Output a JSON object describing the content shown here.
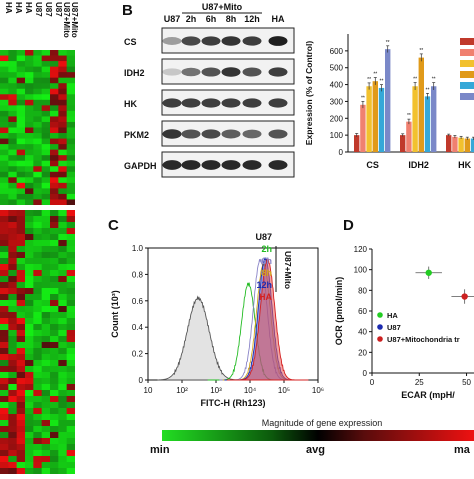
{
  "panel_letters": {
    "b": "B",
    "c": "C",
    "d": "D"
  },
  "heatmap": {
    "col_labels": [
      "HA",
      "U87",
      "U87+Mito",
      "U87+Mito"
    ],
    "colors": {
      "low": "#22dd22",
      "mid": "#000000",
      "high": "#ee1111"
    }
  },
  "western_blot": {
    "u87_label": "U87",
    "group_label": "U87+Mito",
    "time_labels": [
      "2h",
      "6h",
      "8h",
      "12h"
    ],
    "ha_label": "HA",
    "proteins": [
      "CS",
      "IDH2",
      "HK",
      "PKM2",
      "GAPDH"
    ]
  },
  "chart_data": [
    {
      "type": "bar",
      "panel": "B",
      "ylabel": "Expression (% of Control)",
      "ylim": [
        0,
        700
      ],
      "yticks": [
        "0",
        "100",
        "200",
        "300",
        "400",
        "500",
        "600"
      ],
      "categories": [
        "CS",
        "IDH2",
        "HK"
      ],
      "category_labels": [
        "CS",
        "IDH2",
        "HK"
      ],
      "series": [
        {
          "color": "#c0392b",
          "values": [
            100,
            100,
            100
          ]
        },
        {
          "color": "#f08070",
          "values": [
            280,
            180,
            90
          ]
        },
        {
          "color": "#f2c12e",
          "values": [
            390,
            390,
            85
          ]
        },
        {
          "color": "#e09a1a",
          "values": [
            420,
            560,
            80
          ]
        },
        {
          "color": "#35a8d8",
          "values": [
            380,
            330,
            80
          ]
        },
        {
          "color": "#7a88c8",
          "values": [
            610,
            390,
            80
          ]
        }
      ],
      "errors": [
        [
          10,
          8,
          6
        ],
        [
          20,
          15,
          8
        ],
        [
          20,
          22,
          8
        ],
        [
          22,
          22,
          8
        ],
        [
          20,
          18,
          8
        ],
        [
          20,
          22,
          8
        ]
      ],
      "significance": "**"
    },
    {
      "type": "line",
      "panel": "C",
      "xlabel": "FITC-H (Rh123)",
      "ylabel": "Count (10³)",
      "xscale": "log",
      "xlim": [
        10,
        1000000
      ],
      "ylim": [
        0,
        1.0
      ],
      "xticks": [
        "10",
        "10²",
        "10³",
        "10⁴",
        "10⁵",
        "10⁶"
      ],
      "yticks": [
        "0",
        "0.2",
        "0.4",
        "0.6",
        "0.8",
        "1.0"
      ],
      "legend_items": [
        {
          "label": "U87",
          "color": "#111111"
        },
        {
          "label": "2h",
          "color": "#22bb22"
        },
        {
          "label": "6h",
          "color": "#8a84c8"
        },
        {
          "label": "8h",
          "color": "#d4a51a"
        },
        {
          "label": "12h",
          "color": "#1c2bb0"
        },
        {
          "label": "HA",
          "color": "#d42020"
        }
      ],
      "legend_group_label": "U87+Mito",
      "series": [
        {
          "color": "#555555",
          "fill": "#cccccc",
          "peak_x": 300,
          "peak_y": 0.62,
          "width": 0.32
        },
        {
          "color": "#22bb22",
          "fill": "none",
          "peak_x": 9000,
          "peak_y": 0.73,
          "width": 0.2
        },
        {
          "color": "#8a84c8",
          "fill": "none",
          "peak_x": 20000,
          "peak_y": 0.91,
          "width": 0.2
        },
        {
          "color": "#d4a51a",
          "fill": "none",
          "peak_x": 25000,
          "peak_y": 0.88,
          "width": 0.2
        },
        {
          "color": "#1c2bb0",
          "fill": "#3a49c8",
          "peak_x": 28000,
          "peak_y": 0.92,
          "width": 0.2
        },
        {
          "color": "#d42020",
          "fill": "#e85a5a",
          "peak_x": 33000,
          "peak_y": 0.91,
          "width": 0.21
        }
      ]
    },
    {
      "type": "scatter",
      "panel": "D",
      "xlabel": "ECAR (mpH/",
      "ylabel": "OCR (pmol/min)",
      "xlim": [
        0,
        55
      ],
      "ylim": [
        0,
        120
      ],
      "xticks": [
        "0",
        "25",
        "50"
      ],
      "yticks": [
        "0",
        "20",
        "40",
        "60",
        "80",
        "100",
        "120"
      ],
      "points": [
        {
          "label": "HA",
          "color": "#22cc22",
          "x": 30,
          "y": 97,
          "xerr": 7,
          "yerr": 6
        },
        {
          "label": "U87",
          "color": "#1c2bb0",
          "x": 0,
          "y": 0,
          "xerr": 0,
          "yerr": 0
        },
        {
          "label": "U87+Mitochondria tr",
          "color": "#cc2020",
          "x": 49,
          "y": 74,
          "xerr": 7,
          "yerr": 7
        }
      ]
    }
  ],
  "colorbar": {
    "title": "Magnitude of gene expression",
    "min_label": "min",
    "avg_label": "avg",
    "max_label": "ma"
  }
}
